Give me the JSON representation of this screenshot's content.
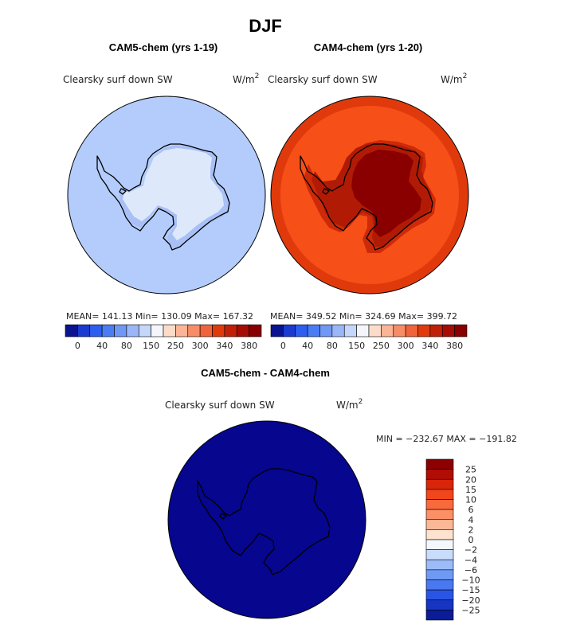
{
  "page": {
    "title": "DJF"
  },
  "panels": {
    "cam5": {
      "heading": "CAM5-chem (yrs 1-19)",
      "variable": "Clearsky surf down SW",
      "units_base": "W/m",
      "units_exp": "2",
      "stats": "MEAN= 141.13    Min= 130.09    Max= 167.32",
      "fill_outer": "#b4ccfb",
      "fill_inner": "#dde9fb",
      "fill_margin": "#a8c0f5"
    },
    "cam4": {
      "heading": "CAM4-chem (yrs 1-20)",
      "variable": "Clearsky surf down SW",
      "units_base": "W/m",
      "units_exp": "2",
      "stats": "MEAN= 349.52    Min= 324.69    Max= 399.72",
      "fill_outer": "#e03a0c",
      "fill_band": "#f74f18",
      "fill_ring": "#cc2a08",
      "fill_ring2": "#b11b05",
      "fill_inner": "#8a0000"
    },
    "diff": {
      "heading": "CAM5-chem - CAM4-chem",
      "variable": "Clearsky surf down SW",
      "units_base": "W/m",
      "units_exp": "2",
      "minmax": "MIN = −232.67  MAX = −191.82",
      "fill": "#06068f"
    }
  },
  "chart_data": [
    {
      "type": "heatmap",
      "title": "CAM5-chem (yrs 1-19)",
      "variable": "Clearsky surf down SW",
      "units": "W/m2",
      "season": "DJF",
      "mean": 141.13,
      "min": 130.09,
      "max": 167.32,
      "colorbar": {
        "orientation": "horizontal",
        "tick_labels": [
          "0",
          "40",
          "80",
          "150",
          "250",
          "300",
          "340",
          "380"
        ],
        "colors": [
          "#0a1490",
          "#1a3bd0",
          "#2c5ef0",
          "#4a7cf4",
          "#6f97f6",
          "#9ab6f8",
          "#c4d6fa",
          "#f4f6fb",
          "#fcdcc8",
          "#fbb596",
          "#f68d66",
          "#f0633b",
          "#e03a0c",
          "#c12008",
          "#a50d04",
          "#880000"
        ]
      }
    },
    {
      "type": "heatmap",
      "title": "CAM4-chem (yrs 1-20)",
      "variable": "Clearsky surf down SW",
      "units": "W/m2",
      "season": "DJF",
      "mean": 349.52,
      "min": 324.69,
      "max": 399.72,
      "colorbar": {
        "orientation": "horizontal",
        "tick_labels": [
          "0",
          "40",
          "80",
          "150",
          "250",
          "300",
          "340",
          "380"
        ],
        "colors": [
          "#0a1490",
          "#1a3bd0",
          "#2c5ef0",
          "#4a7cf4",
          "#6f97f6",
          "#9ab6f8",
          "#c4d6fa",
          "#f4f6fb",
          "#fcdcc8",
          "#fbb596",
          "#f68d66",
          "#f0633b",
          "#e03a0c",
          "#c12008",
          "#a50d04",
          "#880000"
        ]
      }
    },
    {
      "type": "heatmap",
      "title": "CAM5-chem - CAM4-chem",
      "variable": "Clearsky surf down SW",
      "units": "W/m2",
      "season": "DJF",
      "min": -232.67,
      "max": -191.82,
      "colorbar": {
        "orientation": "vertical",
        "tick_labels": [
          "25",
          "20",
          "15",
          "10",
          "6",
          "4",
          "2",
          "0",
          "−2",
          "−4",
          "−6",
          "−10",
          "−15",
          "−20",
          "−25"
        ],
        "colors": [
          "#8c0000",
          "#b10d04",
          "#d9250a",
          "#f0461c",
          "#f86a3c",
          "#fb9066",
          "#fcb896",
          "#fde2cf",
          "#f4f7fc",
          "#c9dcfb",
          "#9bbcf8",
          "#6f9af4",
          "#4a78f0",
          "#2a55e4",
          "#1535c2",
          "#0a1c98"
        ]
      }
    }
  ]
}
